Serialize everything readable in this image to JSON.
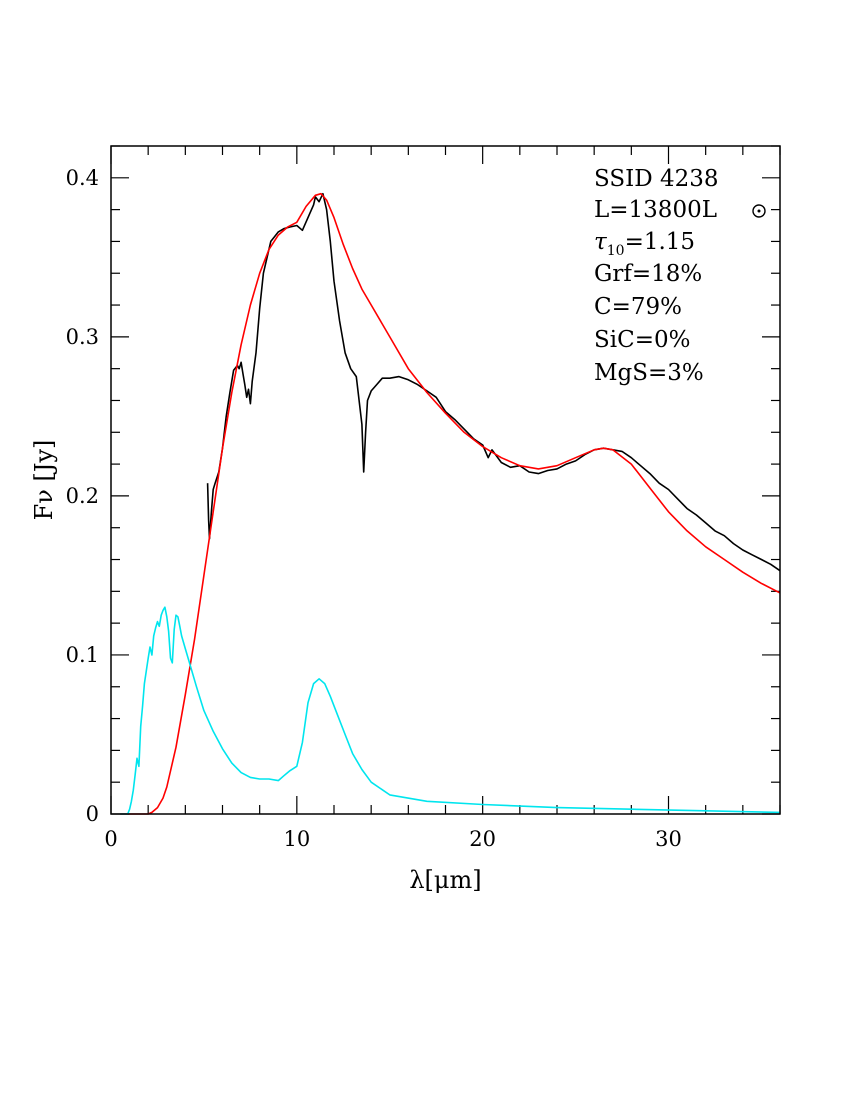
{
  "chart_data": {
    "type": "line",
    "xlabel": "λ[μm]",
    "ylabel": "Fν [Jy]",
    "xlim": [
      0,
      36
    ],
    "ylim": [
      0,
      0.42
    ],
    "x_ticks": [
      0,
      10,
      20,
      30
    ],
    "x_tick_labels": [
      "0",
      "10",
      "20",
      "30"
    ],
    "y_ticks": [
      0,
      0.1,
      0.2,
      0.3,
      0.4
    ],
    "y_tick_labels": [
      "0",
      "0.1",
      "0.2",
      "0.3",
      "0.4"
    ],
    "grid": false,
    "legend_position": "top-right",
    "annotations": {
      "ssid": "SSID 4238",
      "luminosity": "L=13800L",
      "tau_symbol": "τ",
      "tau_sub": "10",
      "tau_value": "=1.15",
      "grf": "Grf=18%",
      "c": "C=79%",
      "sic": "SiC=0%",
      "mgs": "MgS=3%"
    },
    "series": [
      {
        "color": "#000000",
        "x": [
          5.2,
          5.25,
          5.3,
          5.4,
          5.5,
          5.6,
          5.8,
          6.0,
          6.2,
          6.4,
          6.6,
          6.8,
          6.9,
          7.0,
          7.1,
          7.2,
          7.3,
          7.4,
          7.5,
          7.6,
          7.8,
          8.0,
          8.2,
          8.4,
          8.6,
          8.8,
          9.0,
          9.3,
          9.6,
          10.0,
          10.3,
          10.6,
          10.9,
          11.0,
          11.2,
          11.4,
          11.6,
          11.8,
          12.0,
          12.3,
          12.6,
          12.9,
          13.2,
          13.5,
          13.6,
          13.7,
          13.8,
          14.0,
          14.3,
          14.6,
          15.0,
          15.5,
          16.0,
          16.5,
          17.0,
          17.5,
          18.0,
          18.5,
          19.0,
          19.5,
          20.0,
          20.3,
          20.5,
          21.0,
          21.5,
          22.0,
          22.5,
          23.0,
          23.5,
          24.0,
          24.5,
          25.0,
          25.5,
          26.0,
          26.5,
          27.0,
          27.5,
          28.0,
          28.5,
          29.0,
          29.5,
          30.0,
          30.5,
          31.0,
          31.5,
          32.0,
          32.5,
          33.0,
          33.5,
          34.0,
          34.5,
          35.0,
          35.5,
          36.0
        ],
        "y": [
          0.208,
          0.185,
          0.173,
          0.19,
          0.204,
          0.208,
          0.215,
          0.23,
          0.25,
          0.265,
          0.279,
          0.282,
          0.28,
          0.284,
          0.277,
          0.27,
          0.262,
          0.267,
          0.258,
          0.272,
          0.29,
          0.318,
          0.34,
          0.35,
          0.36,
          0.363,
          0.366,
          0.368,
          0.369,
          0.37,
          0.367,
          0.375,
          0.383,
          0.388,
          0.385,
          0.39,
          0.38,
          0.36,
          0.335,
          0.31,
          0.29,
          0.28,
          0.275,
          0.245,
          0.215,
          0.24,
          0.26,
          0.266,
          0.27,
          0.274,
          0.274,
          0.275,
          0.273,
          0.27,
          0.266,
          0.262,
          0.253,
          0.248,
          0.242,
          0.236,
          0.232,
          0.224,
          0.229,
          0.221,
          0.218,
          0.219,
          0.215,
          0.214,
          0.216,
          0.217,
          0.22,
          0.222,
          0.226,
          0.229,
          0.23,
          0.229,
          0.228,
          0.224,
          0.219,
          0.214,
          0.208,
          0.204,
          0.198,
          0.192,
          0.188,
          0.183,
          0.178,
          0.175,
          0.17,
          0.166,
          0.163,
          0.16,
          0.157,
          0.153
        ]
      },
      {
        "color": "#ff0000",
        "x": [
          0.5,
          1.0,
          1.5,
          2.0,
          2.2,
          2.5,
          2.8,
          3.0,
          3.5,
          4.0,
          4.5,
          5.0,
          5.5,
          6.0,
          6.5,
          7.0,
          7.5,
          8.0,
          8.5,
          9.0,
          9.5,
          10.0,
          10.5,
          11.0,
          11.3,
          11.6,
          12.0,
          12.5,
          13.0,
          13.5,
          14.0,
          15.0,
          16.0,
          17.0,
          18.0,
          19.0,
          20.0,
          21.0,
          22.0,
          23.0,
          24.0,
          25.0,
          26.0,
          26.5,
          27.0,
          28.0,
          29.0,
          30.0,
          31.0,
          32.0,
          33.0,
          34.0,
          35.0,
          36.0
        ],
        "y": [
          0.0,
          0.0,
          0.0,
          0.0,
          0.001,
          0.004,
          0.01,
          0.017,
          0.042,
          0.075,
          0.11,
          0.15,
          0.19,
          0.23,
          0.265,
          0.295,
          0.32,
          0.34,
          0.355,
          0.364,
          0.369,
          0.372,
          0.382,
          0.389,
          0.39,
          0.386,
          0.375,
          0.358,
          0.343,
          0.33,
          0.32,
          0.3,
          0.28,
          0.265,
          0.252,
          0.24,
          0.231,
          0.224,
          0.219,
          0.217,
          0.219,
          0.224,
          0.229,
          0.23,
          0.229,
          0.22,
          0.205,
          0.19,
          0.178,
          0.168,
          0.16,
          0.152,
          0.145,
          0.139
        ]
      },
      {
        "color": "#00e5ee",
        "x": [
          0.5,
          0.7,
          0.9,
          1.0,
          1.1,
          1.2,
          1.3,
          1.4,
          1.5,
          1.6,
          1.7,
          1.8,
          1.9,
          2.0,
          2.1,
          2.2,
          2.3,
          2.4,
          2.5,
          2.6,
          2.7,
          2.8,
          2.9,
          3.0,
          3.1,
          3.2,
          3.3,
          3.4,
          3.5,
          3.6,
          3.7,
          3.8,
          4.0,
          4.3,
          4.6,
          5.0,
          5.5,
          6.0,
          6.5,
          7.0,
          7.5,
          8.0,
          8.5,
          9.0,
          9.3,
          9.6,
          10.0,
          10.3,
          10.6,
          10.9,
          11.2,
          11.5,
          11.8,
          12.2,
          12.6,
          13.0,
          13.5,
          14.0,
          15.0,
          17.0,
          20.0,
          24.0,
          28.0,
          32.0,
          36.0
        ],
        "y": [
          0.0,
          0.0,
          0.0,
          0.003,
          0.008,
          0.015,
          0.025,
          0.035,
          0.03,
          0.055,
          0.068,
          0.082,
          0.09,
          0.098,
          0.105,
          0.1,
          0.112,
          0.117,
          0.121,
          0.118,
          0.125,
          0.128,
          0.13,
          0.124,
          0.115,
          0.098,
          0.095,
          0.116,
          0.125,
          0.124,
          0.118,
          0.112,
          0.104,
          0.092,
          0.08,
          0.065,
          0.052,
          0.041,
          0.032,
          0.026,
          0.023,
          0.022,
          0.022,
          0.021,
          0.024,
          0.027,
          0.03,
          0.045,
          0.07,
          0.082,
          0.085,
          0.082,
          0.074,
          0.062,
          0.05,
          0.038,
          0.028,
          0.02,
          0.012,
          0.008,
          0.006,
          0.004,
          0.003,
          0.002,
          0.001
        ]
      }
    ]
  }
}
